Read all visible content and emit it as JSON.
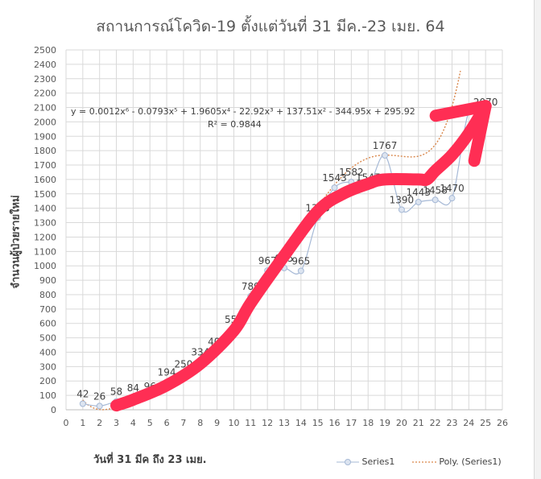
{
  "chart_data": {
    "type": "line",
    "title": "สถานการณ์โควิด-19 ตั้งแต่วันที่ 31 มีค.-23 เมย. 64",
    "xlabel": "วันที่ 31 มีค ถึง 23 เมย.",
    "ylabel": "จำนวนผู้ป่วยรายใหม่",
    "xlim": [
      0,
      26
    ],
    "ylim": [
      0,
      2500
    ],
    "x_ticks": [
      "0",
      "1",
      "2",
      "3",
      "4",
      "5",
      "6",
      "7",
      "8",
      "9",
      "10",
      "11",
      "12",
      "13",
      "14",
      "15",
      "16",
      "17",
      "18",
      "19",
      "20",
      "21",
      "22",
      "23",
      "24",
      "25",
      "26"
    ],
    "y_ticks": [
      "0",
      "100",
      "200",
      "300",
      "400",
      "500",
      "600",
      "700",
      "800",
      "900",
      "1000",
      "1100",
      "1200",
      "1300",
      "1400",
      "1500",
      "1600",
      "1700",
      "1800",
      "1900",
      "2000",
      "2100",
      "2200",
      "2300",
      "2400",
      "2500"
    ],
    "grid": true,
    "series": [
      {
        "name": "Series1",
        "color": "#a6b9d6",
        "x": [
          1,
          2,
          3,
          4,
          5,
          6,
          7,
          8,
          9,
          10,
          11,
          12,
          13,
          14,
          15,
          16,
          17,
          18,
          19,
          20,
          21,
          22,
          23,
          24,
          25
        ],
        "values": [
          42,
          26,
          58,
          84,
          96,
          194,
          250,
          334,
          405,
          559,
          789,
          967,
          985,
          965,
          1335,
          1543,
          1582,
          1547,
          1767,
          1390,
          1443,
          1458,
          1470,
          2070,
          2070
        ],
        "labels": [
          "42",
          "26",
          "58",
          "84",
          "96",
          "194",
          "250",
          "334",
          "405",
          "559",
          "789",
          "967",
          "985",
          "965",
          "1335",
          "1543",
          "1582",
          "1547",
          "1767",
          "1390",
          "1443",
          "1458",
          "1470",
          "",
          "2070"
        ]
      },
      {
        "name": "Poly. (Series1)",
        "color": "#d9874b",
        "style": "dotted",
        "coefficients": [
          0.0012,
          -0.0793,
          1.9605,
          -22.92,
          137.51,
          -344.95,
          295.92
        ]
      }
    ],
    "trendline_equation": "y = 0.0012x⁶ - 0.0793x⁵ + 1.9605x⁴ - 22.92x³ + 137.51x² - 344.95x + 295.92",
    "trendline_r2": "R² = 0.9844",
    "annotation": {
      "type": "hand-drawn-arrow",
      "color": "#ff2e54",
      "x": [
        3,
        4,
        6,
        8,
        10,
        11,
        13,
        15,
        16.5,
        18,
        19,
        21,
        21.5,
        22,
        23,
        24,
        25
      ],
      "values": [
        30,
        70,
        170,
        320,
        550,
        740,
        1070,
        1380,
        1500,
        1570,
        1600,
        1600,
        1600,
        1660,
        1770,
        1920,
        2110
      ]
    },
    "legend": [
      "Series1",
      "Poly. (Series1)"
    ],
    "legend_position": "bottom-right"
  }
}
